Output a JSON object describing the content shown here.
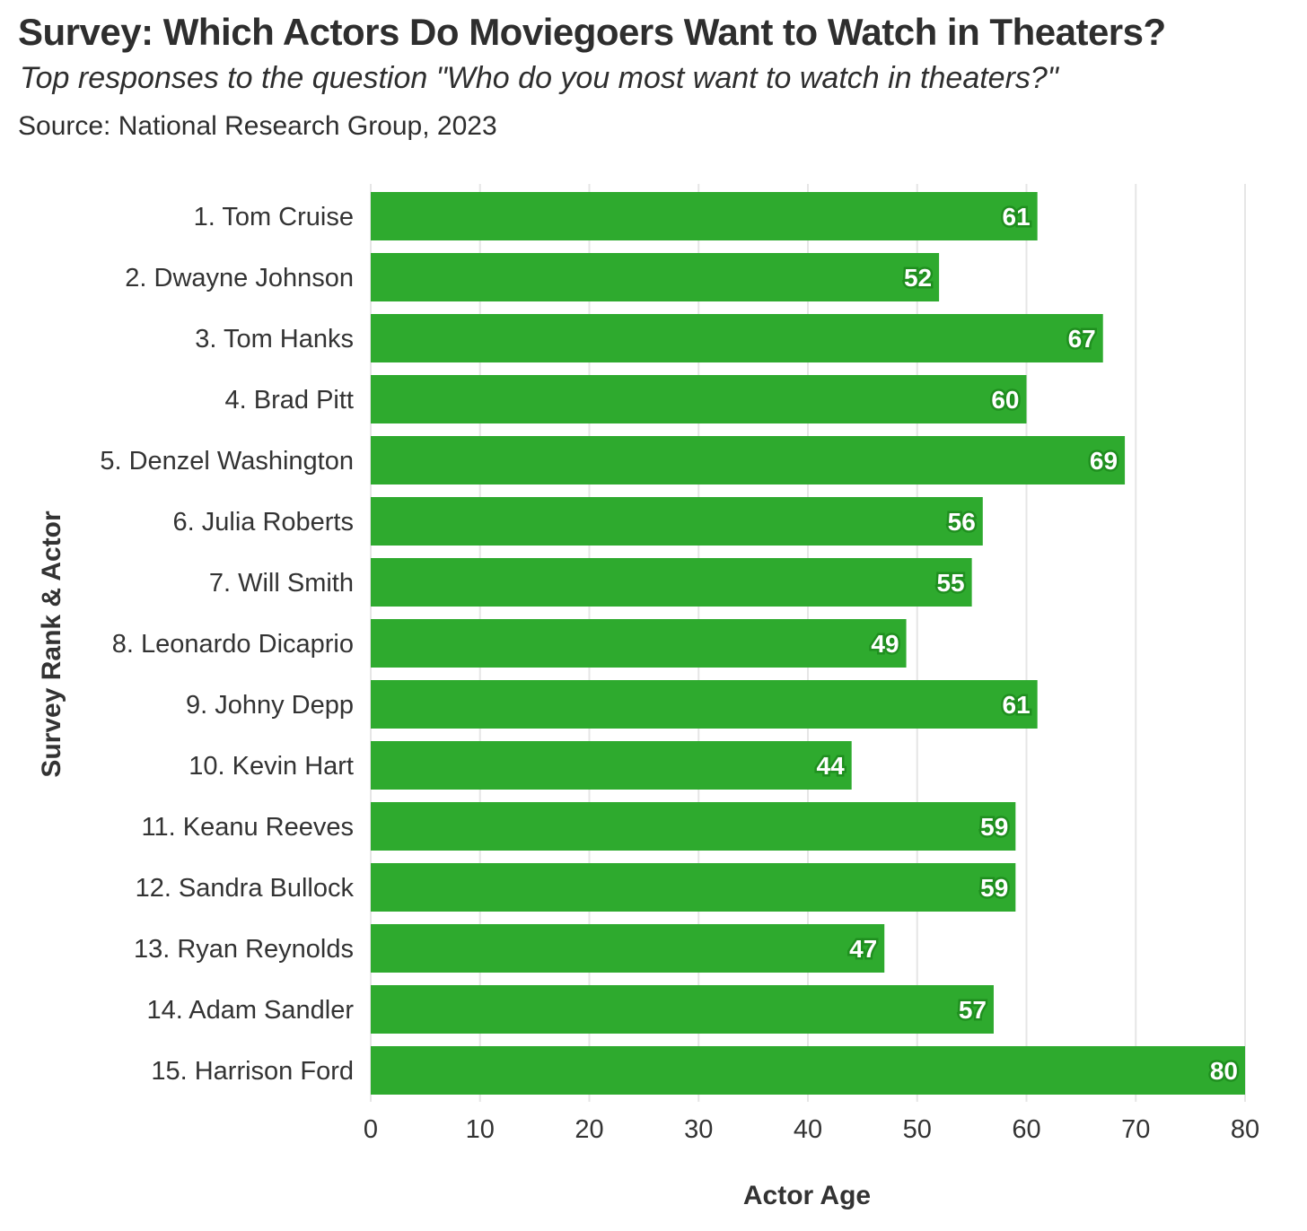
{
  "header": {
    "title": "Survey: Which Actors Do Moviegoers Want to Watch in Theaters?",
    "subtitle": "Top responses to the question \"Who do you most want to watch in theaters?\"",
    "source": "Source: National Research Group, 2023"
  },
  "chart_data": {
    "type": "bar",
    "orientation": "horizontal",
    "categories": [
      "1. Tom Cruise",
      "2. Dwayne Johnson",
      "3. Tom Hanks",
      "4. Brad Pitt",
      "5. Denzel Washington",
      "6. Julia Roberts",
      "7. Will Smith",
      "8. Leonardo Dicaprio",
      "9. Johny Depp",
      "10. Kevin Hart",
      "11. Keanu Reeves",
      "12. Sandra Bullock",
      "13. Ryan Reynolds",
      "14. Adam Sandler",
      "15. Harrison Ford"
    ],
    "values": [
      61,
      52,
      67,
      60,
      69,
      56,
      55,
      49,
      61,
      44,
      59,
      59,
      47,
      57,
      80
    ],
    "xlabel": "Actor Age",
    "ylabel": "Survey Rank & Actor",
    "xlim": [
      0,
      80
    ],
    "xticks": [
      0,
      10,
      20,
      30,
      40,
      50,
      60,
      70,
      80
    ],
    "grid": "vertical",
    "data_labels": true,
    "bar_color": "#2eaa2e",
    "label_outline_color": "#1f8f1f"
  }
}
